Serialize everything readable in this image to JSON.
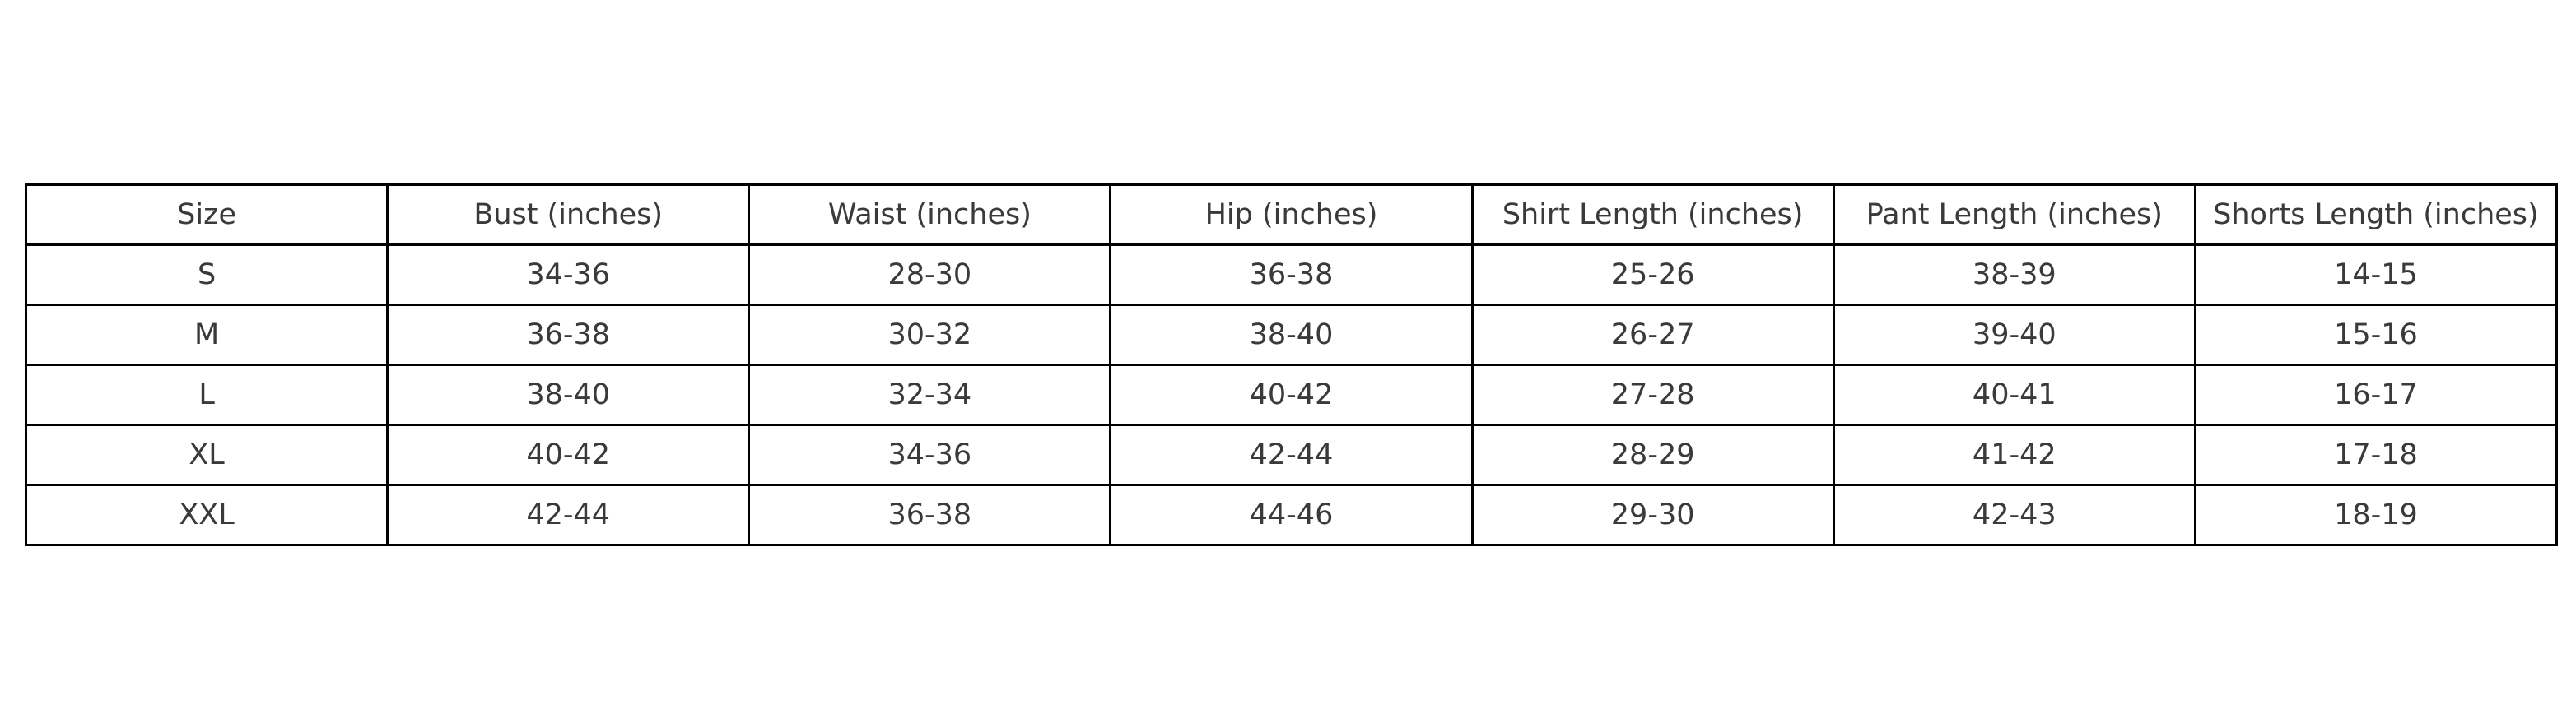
{
  "page": {
    "background_color": "#ffffff"
  },
  "colors": {
    "table_border": "#000000",
    "table_text": "#3a3a3a",
    "table_background": "#ffffff"
  },
  "chart_data": {
    "type": "table",
    "title": "",
    "columns": [
      "Size",
      "Bust (inches)",
      "Waist (inches)",
      "Hip (inches)",
      "Shirt Length (inches)",
      "Pant Length (inches)",
      "Shorts Length (inches)"
    ],
    "rows": [
      [
        "S",
        "34-36",
        "28-30",
        "36-38",
        "25-26",
        "38-39",
        "14-15"
      ],
      [
        "M",
        "36-38",
        "30-32",
        "38-40",
        "26-27",
        "39-40",
        "15-16"
      ],
      [
        "L",
        "38-40",
        "32-34",
        "40-42",
        "27-28",
        "40-41",
        "16-17"
      ],
      [
        "XL",
        "40-42",
        "34-36",
        "42-44",
        "28-29",
        "41-42",
        "17-18"
      ],
      [
        "XXL",
        "42-44",
        "36-38",
        "44-46",
        "29-30",
        "42-43",
        "18-19"
      ]
    ],
    "layout": {
      "grid": true,
      "header_row": true,
      "equal_column_widths": true
    }
  }
}
